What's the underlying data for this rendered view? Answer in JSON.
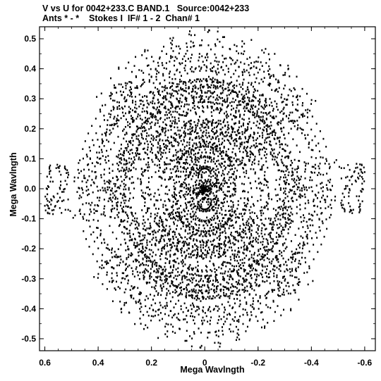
{
  "title_line1": "V vs U for 0042+233.C BAND.1   Source:0042+233",
  "title_line2": "Ants * - *    Stokes I  IF# 1 - 2  Chan# 1",
  "chart_data": {
    "type": "scatter",
    "xlabel": "Mega Wavlngth",
    "ylabel": "Mega Wavlngth",
    "xlim": [
      0.62,
      -0.64
    ],
    "ylim": [
      -0.54,
      0.54
    ],
    "x_reversed": true,
    "x_ticks": [
      0.6,
      0.4,
      0.2,
      0,
      -0.2,
      -0.4,
      -0.6
    ],
    "y_ticks": [
      0.5,
      0.4,
      0.3,
      0.2,
      0.1,
      0,
      -0.1,
      -0.2,
      -0.3,
      -0.4,
      -0.5
    ],
    "x_tick_labels": [
      "0.6",
      "0.4",
      "0.2",
      "0",
      "-0.2",
      "-0.4",
      "-0.6"
    ],
    "y_tick_labels": [
      "0.5",
      "0.4",
      "0.3",
      "0.2",
      "0.1",
      "0.0",
      "-0.1",
      "-0.2",
      "-0.3",
      "-0.4",
      "-0.5"
    ],
    "grid": false,
    "marker_color": "#000000",
    "pattern": "uv-coverage",
    "max_extent_u": 0.6,
    "max_extent_v": 0.53
  }
}
